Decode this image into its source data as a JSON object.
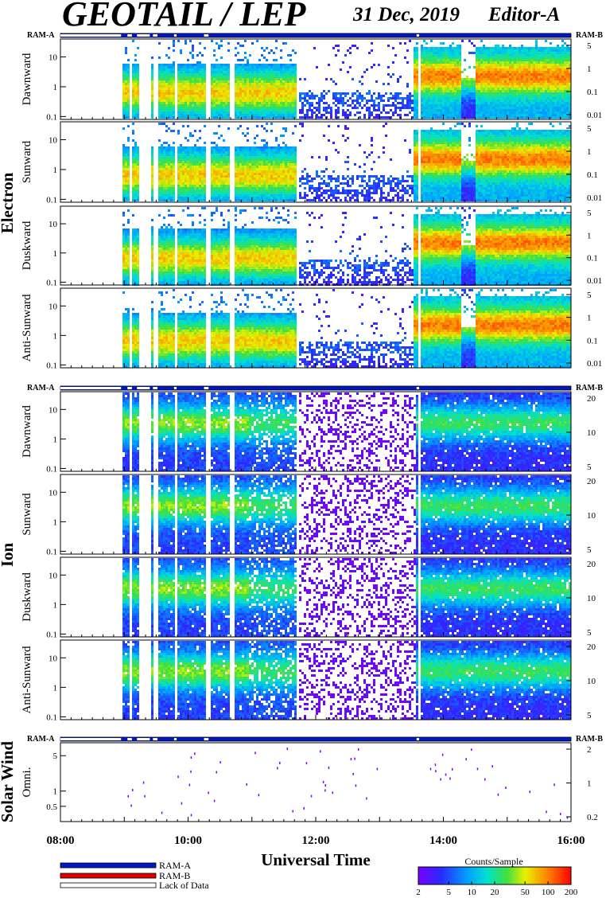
{
  "header": {
    "title": "GEOTAIL / LEP",
    "date": "31 Dec, 2019",
    "editor": "Editor-A"
  },
  "ram_labels": {
    "left": "RAM-A",
    "right": "RAM-B"
  },
  "groups": [
    {
      "name": "Electron",
      "panels": [
        0,
        1,
        2,
        3
      ]
    },
    {
      "name": "Ion",
      "panels": [
        4,
        5,
        6,
        7
      ]
    },
    {
      "name": "Solar Wind",
      "panels": [
        8
      ]
    }
  ],
  "chart_data": {
    "type": "heatmap",
    "xlabel": "Universal Time",
    "x_range_hours": [
      8,
      16
    ],
    "x_ticks": [
      {
        "hour": 8,
        "label": "08:00"
      },
      {
        "hour": 10,
        "label": "10:00"
      },
      {
        "hour": 12,
        "label": "12:00"
      },
      {
        "hour": 14,
        "label": "14:00"
      },
      {
        "hour": 16,
        "label": "16:00"
      }
    ],
    "panels": [
      {
        "species": "Electron",
        "direction": "Dawnward",
        "y_scale": "log",
        "ylim": [
          0.08,
          40
        ],
        "y_ticks": [
          {
            "v": 10,
            "label": "10"
          },
          {
            "v": 1,
            "label": "1"
          },
          {
            "v": 0.1,
            "label": "0.1"
          }
        ],
        "right_ticks": [
          "5",
          "1",
          "0.1",
          "0.01"
        ]
      },
      {
        "species": "Electron",
        "direction": "Sunward",
        "y_scale": "log",
        "ylim": [
          0.08,
          40
        ],
        "y_ticks": [
          {
            "v": 10,
            "label": "10"
          },
          {
            "v": 1,
            "label": "1"
          },
          {
            "v": 0.1,
            "label": "0.1"
          }
        ],
        "right_ticks": [
          "5",
          "1",
          "0.1",
          "0.01"
        ]
      },
      {
        "species": "Electron",
        "direction": "Duskward",
        "y_scale": "log",
        "ylim": [
          0.08,
          40
        ],
        "y_ticks": [
          {
            "v": 10,
            "label": "10"
          },
          {
            "v": 1,
            "label": "1"
          },
          {
            "v": 0.1,
            "label": "0.1"
          }
        ],
        "right_ticks": [
          "5",
          "1",
          "0.1",
          "0.01"
        ]
      },
      {
        "species": "Electron",
        "direction": "Anti-Sunward",
        "y_scale": "log",
        "ylim": [
          0.08,
          40
        ],
        "y_ticks": [
          {
            "v": 10,
            "label": "10"
          },
          {
            "v": 1,
            "label": "1"
          },
          {
            "v": 0.1,
            "label": "0.1"
          }
        ],
        "right_ticks": [
          "5",
          "1",
          "0.1",
          "0.01"
        ]
      },
      {
        "species": "Ion",
        "direction": "Dawnward",
        "y_scale": "log",
        "ylim": [
          0.08,
          40
        ],
        "y_ticks": [
          {
            "v": 10,
            "label": "10"
          },
          {
            "v": 1,
            "label": "1"
          },
          {
            "v": 0.1,
            "label": "0.1"
          }
        ],
        "right_ticks": [
          "20",
          "10",
          "5"
        ]
      },
      {
        "species": "Ion",
        "direction": "Sunward",
        "y_scale": "log",
        "ylim": [
          0.08,
          40
        ],
        "y_ticks": [
          {
            "v": 10,
            "label": "10"
          },
          {
            "v": 1,
            "label": "1"
          },
          {
            "v": 0.1,
            "label": "0.1"
          }
        ],
        "right_ticks": [
          "20",
          "10",
          "5"
        ]
      },
      {
        "species": "Ion",
        "direction": "Duskward",
        "y_scale": "log",
        "ylim": [
          0.08,
          40
        ],
        "y_ticks": [
          {
            "v": 10,
            "label": "10"
          },
          {
            "v": 1,
            "label": "1"
          },
          {
            "v": 0.1,
            "label": "0.1"
          }
        ],
        "right_ticks": [
          "20",
          "10",
          "5"
        ]
      },
      {
        "species": "Ion",
        "direction": "Anti-Sunward",
        "y_scale": "log",
        "ylim": [
          0.08,
          40
        ],
        "y_ticks": [
          {
            "v": 10,
            "label": "10"
          },
          {
            "v": 1,
            "label": "1"
          },
          {
            "v": 0.1,
            "label": "0.1"
          }
        ],
        "right_ticks": [
          "20",
          "10",
          "5"
        ]
      },
      {
        "species": "Solar Wind",
        "direction": "Omni.",
        "y_scale": "log",
        "ylim": [
          0.25,
          9
        ],
        "y_ticks": [
          {
            "v": 5,
            "label": "5"
          },
          {
            "v": 1,
            "label": "1"
          },
          {
            "v": 0.5,
            "label": "0.5"
          }
        ],
        "right_ticks": [
          "2",
          "1",
          "0.2"
        ]
      }
    ],
    "ram_gaps_hours": [
      [
        8.0,
        8.95
      ],
      [
        9.05,
        9.12
      ],
      [
        9.2,
        9.4
      ],
      [
        9.45,
        9.52
      ],
      [
        9.78,
        9.82
      ],
      [
        10.25,
        10.32
      ],
      [
        13.58,
        13.62
      ]
    ]
  },
  "legend": {
    "items": [
      {
        "label": "RAM-A",
        "color": "#0018c8"
      },
      {
        "label": "RAM-B",
        "color": "#e00000"
      },
      {
        "label": "Lack of Data",
        "color": "#ffffff"
      }
    ]
  },
  "colorbar": {
    "title": "Counts/Sample",
    "ticks": [
      "2",
      "5",
      "10",
      "20",
      "50",
      "100",
      "200"
    ],
    "tick_values": [
      2,
      5,
      10,
      20,
      50,
      100,
      200
    ],
    "range": [
      2,
      200
    ]
  },
  "colors": {
    "ram_bar": "#0018c8",
    "frame": "#000000"
  }
}
